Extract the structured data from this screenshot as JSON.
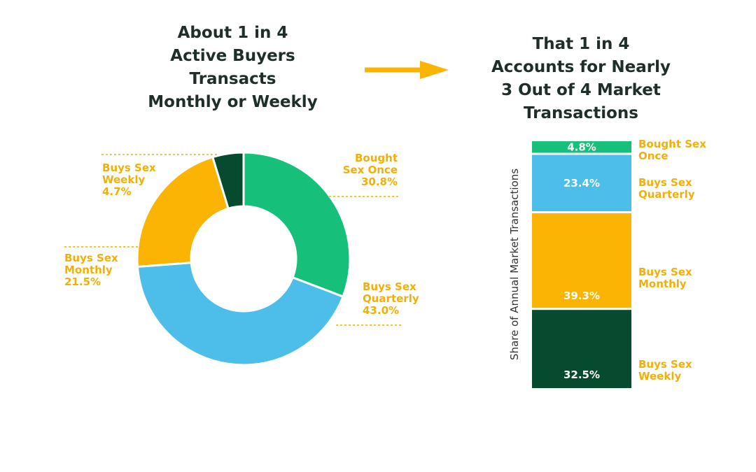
{
  "left_title": "About 1 in 4\nActive Buyers\nTransacts\nMonthly or Weekly",
  "right_title": "That 1 in 4\nAccounts for Nearly\n3 Out of 4 Market\nTransactions",
  "colors": {
    "once": "#16c07a",
    "quarterly": "#4dbdea",
    "monthly": "#fbb403",
    "weekly": "#064a30",
    "arrow": "#fbb403",
    "label": "#f2b006"
  },
  "chart_data": [
    {
      "type": "pie",
      "title": "About 1 in 4 Active Buyers Transacts Monthly or Weekly",
      "donut": true,
      "slices": [
        {
          "key": "once",
          "label": "Bought\nSex Once",
          "value": 30.8,
          "display": "30.8%"
        },
        {
          "key": "quarterly",
          "label": "Buys Sex\nQuarterly",
          "value": 43.0,
          "display": "43.0%"
        },
        {
          "key": "monthly",
          "label": "Buys Sex\nMonthly",
          "value": 21.5,
          "display": "21.5%"
        },
        {
          "key": "weekly",
          "label": "Buys Sex\nWeekly",
          "value": 4.7,
          "display": "4.7%"
        }
      ]
    },
    {
      "type": "bar",
      "stacked": true,
      "title": "That 1 in 4 Accounts for Nearly 3 Out of 4 Market Transactions",
      "ylabel": "Share of Annual Market Transactions",
      "segments": [
        {
          "key": "once",
          "label": "Bought Sex\nOnce",
          "value": 4.8,
          "display": "4.8%"
        },
        {
          "key": "quarterly",
          "label": "Buys Sex\nQuarterly",
          "value": 23.4,
          "display": "23.4%"
        },
        {
          "key": "monthly",
          "label": "Buys Sex\nMonthly",
          "value": 39.3,
          "display": "39.3%"
        },
        {
          "key": "weekly",
          "label": "Buys Sex\nWeekly",
          "value": 32.5,
          "display": "32.5%"
        }
      ]
    }
  ]
}
